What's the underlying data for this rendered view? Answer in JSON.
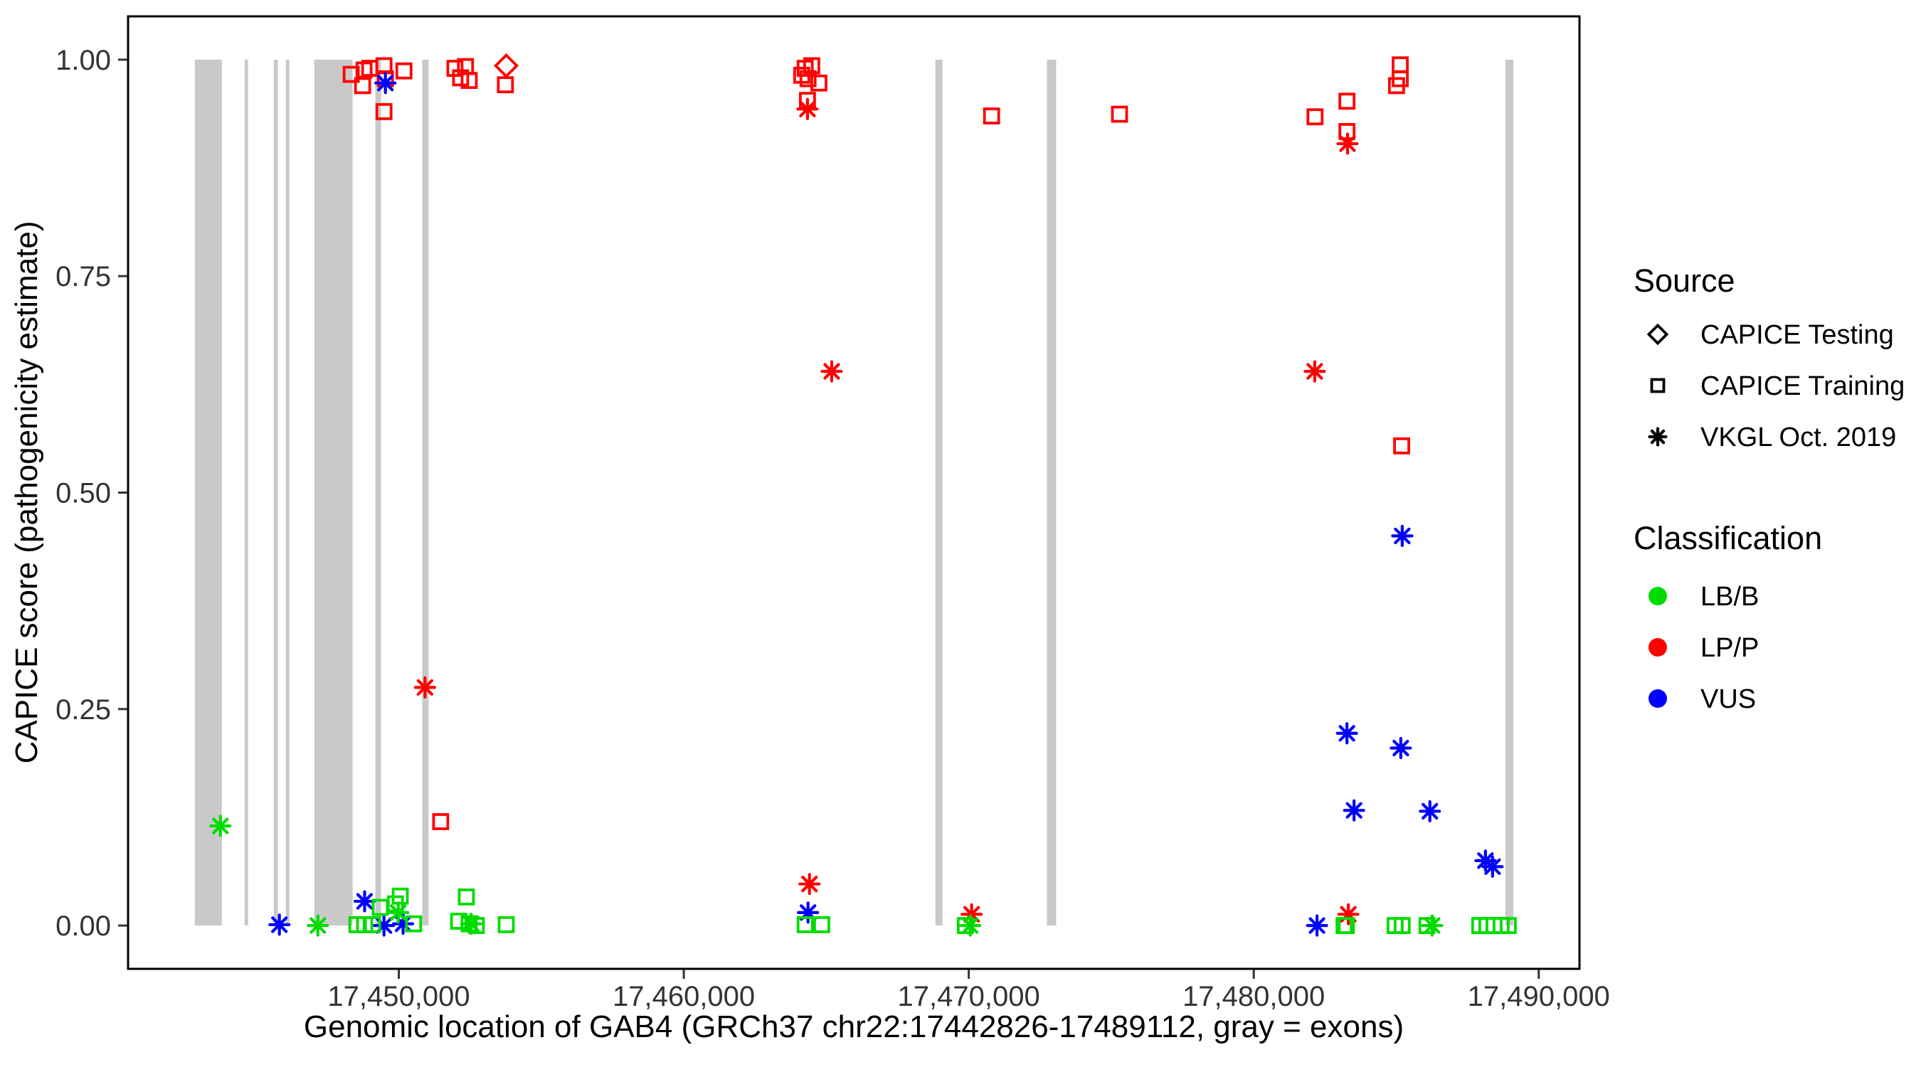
{
  "legend": {
    "source": {
      "title": "Source",
      "items": [
        {
          "label": "CAPICE Testing",
          "shape": "diamond"
        },
        {
          "label": "CAPICE Training",
          "shape": "square"
        },
        {
          "label": "VKGL Oct. 2019",
          "shape": "asterisk"
        }
      ]
    },
    "classification": {
      "title": "Classification",
      "items": [
        {
          "label": "LB/B",
          "color": "#00DC00"
        },
        {
          "label": "LP/P",
          "color": "#FF0000"
        },
        {
          "label": "VUS",
          "color": "#0000FF"
        }
      ]
    }
  },
  "chart_data": {
    "type": "scatter",
    "xlabel": "Genomic location of GAB4 (GRCh37 chr22:17442826-17489112, gray = exons)",
    "ylabel": "CAPICE score (pathogenicity estimate)",
    "x_range": [
      17440500,
      17491430
    ],
    "y_display_range": [
      -0.05,
      1.05
    ],
    "ylim": [
      0,
      1
    ],
    "grid": false,
    "exon_color": "#C9C9C9",
    "panel_border_color": "#000000",
    "colors": {
      "LB/B": "#00DC00",
      "LP/P": "#FF0000",
      "VUS": "#0000FF"
    },
    "shape_by_source": {
      "CAPICE Testing": "diamond",
      "CAPICE Training": "square",
      "VKGL Oct. 2019": "asterisk"
    },
    "x_ticks": [
      {
        "value": 17450000,
        "label": "17,450,000"
      },
      {
        "value": 17460000,
        "label": "17,460,000"
      },
      {
        "value": 17470000,
        "label": "17,470,000"
      },
      {
        "value": 17480000,
        "label": "17,480,000"
      },
      {
        "value": 17490000,
        "label": "17,490,000"
      }
    ],
    "y_ticks": [
      {
        "value": 0,
        "label": "0.00"
      },
      {
        "value": 0.25,
        "label": "0.25"
      },
      {
        "value": 0.5,
        "label": "0.50"
      },
      {
        "value": 0.75,
        "label": "0.75"
      },
      {
        "value": 1,
        "label": "1.00"
      }
    ],
    "exons": [
      [
        17442843,
        17443790
      ],
      [
        17444588,
        17444712
      ],
      [
        17445610,
        17445760
      ],
      [
        17446034,
        17446159
      ],
      [
        17447032,
        17448378
      ],
      [
        17449177,
        17449377
      ],
      [
        17450823,
        17451047
      ],
      [
        17468827,
        17469077
      ],
      [
        17472743,
        17473067
      ],
      [
        17488827,
        17489112
      ]
    ],
    "points": [
      {
        "loc": 17448330,
        "score": 0.983,
        "cls": "LP/P",
        "src": "CAPICE Training"
      },
      {
        "loc": 17448780,
        "score": 0.988,
        "cls": "LP/P",
        "src": "CAPICE Training"
      },
      {
        "loc": 17448980,
        "score": 0.99,
        "cls": "LP/P",
        "src": "CAPICE Training"
      },
      {
        "loc": 17449480,
        "score": 0.993,
        "cls": "LP/P",
        "src": "CAPICE Training"
      },
      {
        "loc": 17449530,
        "score": 0.978,
        "cls": "LP/P",
        "src": "CAPICE Training"
      },
      {
        "loc": 17448730,
        "score": 0.97,
        "cls": "LP/P",
        "src": "CAPICE Training"
      },
      {
        "loc": 17450180,
        "score": 0.987,
        "cls": "LP/P",
        "src": "CAPICE Training"
      },
      {
        "loc": 17449480,
        "score": 0.94,
        "cls": "LP/P",
        "src": "CAPICE Training"
      },
      {
        "loc": 17451970,
        "score": 0.99,
        "cls": "LP/P",
        "src": "CAPICE Training"
      },
      {
        "loc": 17452340,
        "score": 0.992,
        "cls": "LP/P",
        "src": "CAPICE Training"
      },
      {
        "loc": 17452170,
        "score": 0.979,
        "cls": "LP/P",
        "src": "CAPICE Training"
      },
      {
        "loc": 17452470,
        "score": 0.976,
        "cls": "LP/P",
        "src": "CAPICE Training"
      },
      {
        "loc": 17453740,
        "score": 0.971,
        "cls": "LP/P",
        "src": "CAPICE Training"
      },
      {
        "loc": 17451470,
        "score": 0.12,
        "cls": "LP/P",
        "src": "CAPICE Training"
      },
      {
        "loc": 17464260,
        "score": 0.99,
        "cls": "LP/P",
        "src": "CAPICE Training"
      },
      {
        "loc": 17464140,
        "score": 0.982,
        "cls": "LP/P",
        "src": "CAPICE Training"
      },
      {
        "loc": 17464490,
        "score": 0.993,
        "cls": "LP/P",
        "src": "CAPICE Training"
      },
      {
        "loc": 17464360,
        "score": 0.978,
        "cls": "LP/P",
        "src": "CAPICE Training"
      },
      {
        "loc": 17464740,
        "score": 0.973,
        "cls": "LP/P",
        "src": "CAPICE Training"
      },
      {
        "loc": 17464340,
        "score": 0.953,
        "cls": "LP/P",
        "src": "CAPICE Training"
      },
      {
        "loc": 17470800,
        "score": 0.935,
        "cls": "LP/P",
        "src": "CAPICE Training"
      },
      {
        "loc": 17475290,
        "score": 0.937,
        "cls": "LP/P",
        "src": "CAPICE Training"
      },
      {
        "loc": 17482150,
        "score": 0.934,
        "cls": "LP/P",
        "src": "CAPICE Training"
      },
      {
        "loc": 17483270,
        "score": 0.952,
        "cls": "LP/P",
        "src": "CAPICE Training"
      },
      {
        "loc": 17483270,
        "score": 0.917,
        "cls": "LP/P",
        "src": "CAPICE Training"
      },
      {
        "loc": 17485140,
        "score": 0.994,
        "cls": "LP/P",
        "src": "CAPICE Training"
      },
      {
        "loc": 17485140,
        "score": 0.978,
        "cls": "LP/P",
        "src": "CAPICE Training"
      },
      {
        "loc": 17485010,
        "score": 0.97,
        "cls": "LP/P",
        "src": "CAPICE Training"
      },
      {
        "loc": 17485190,
        "score": 0.554,
        "cls": "LP/P",
        "src": "CAPICE Training"
      },
      {
        "loc": 17453770,
        "score": 0.993,
        "cls": "LP/P",
        "src": "CAPICE Testing"
      },
      {
        "loc": 17450920,
        "score": 0.275,
        "cls": "LP/P",
        "src": "VKGL Oct. 2019"
      },
      {
        "loc": 17464340,
        "score": 0.943,
        "cls": "LP/P",
        "src": "VKGL Oct. 2019"
      },
      {
        "loc": 17465190,
        "score": 0.64,
        "cls": "LP/P",
        "src": "VKGL Oct. 2019"
      },
      {
        "loc": 17464410,
        "score": 0.048,
        "cls": "LP/P",
        "src": "VKGL Oct. 2019"
      },
      {
        "loc": 17470100,
        "score": 0.013,
        "cls": "LP/P",
        "src": "VKGL Oct. 2019"
      },
      {
        "loc": 17483290,
        "score": 0.903,
        "cls": "LP/P",
        "src": "VKGL Oct. 2019"
      },
      {
        "loc": 17482140,
        "score": 0.64,
        "cls": "LP/P",
        "src": "VKGL Oct. 2019"
      },
      {
        "loc": 17483320,
        "score": 0.013,
        "cls": "LP/P",
        "src": "VKGL Oct. 2019"
      },
      {
        "loc": 17449530,
        "score": 0.973,
        "cls": "VUS",
        "src": "VKGL Oct. 2019"
      },
      {
        "loc": 17445810,
        "score": 0.001,
        "cls": "VUS",
        "src": "VKGL Oct. 2019"
      },
      {
        "loc": 17448800,
        "score": 0.028,
        "cls": "VUS",
        "src": "VKGL Oct. 2019"
      },
      {
        "loc": 17449480,
        "score": 0.0,
        "cls": "VUS",
        "src": "VKGL Oct. 2019"
      },
      {
        "loc": 17450150,
        "score": 0.002,
        "cls": "VUS",
        "src": "VKGL Oct. 2019"
      },
      {
        "loc": 17464360,
        "score": 0.015,
        "cls": "VUS",
        "src": "VKGL Oct. 2019"
      },
      {
        "loc": 17482220,
        "score": 0.0,
        "cls": "VUS",
        "src": "VKGL Oct. 2019"
      },
      {
        "loc": 17483270,
        "score": 0.222,
        "cls": "VUS",
        "src": "VKGL Oct. 2019"
      },
      {
        "loc": 17485160,
        "score": 0.205,
        "cls": "VUS",
        "src": "VKGL Oct. 2019"
      },
      {
        "loc": 17485210,
        "score": 0.45,
        "cls": "VUS",
        "src": "VKGL Oct. 2019"
      },
      {
        "loc": 17483520,
        "score": 0.133,
        "cls": "VUS",
        "src": "VKGL Oct. 2019"
      },
      {
        "loc": 17486180,
        "score": 0.132,
        "cls": "VUS",
        "src": "VKGL Oct. 2019"
      },
      {
        "loc": 17488130,
        "score": 0.075,
        "cls": "VUS",
        "src": "VKGL Oct. 2019"
      },
      {
        "loc": 17488380,
        "score": 0.068,
        "cls": "VUS",
        "src": "VKGL Oct. 2019"
      },
      {
        "loc": 17443740,
        "score": 0.115,
        "cls": "LB/B",
        "src": "VKGL Oct. 2019"
      },
      {
        "loc": 17447160,
        "score": 0.0,
        "cls": "LB/B",
        "src": "VKGL Oct. 2019"
      },
      {
        "loc": 17449980,
        "score": 0.015,
        "cls": "LB/B",
        "src": "VKGL Oct. 2019"
      },
      {
        "loc": 17452540,
        "score": 0.002,
        "cls": "LB/B",
        "src": "VKGL Oct. 2019"
      },
      {
        "loc": 17470050,
        "score": 0.0,
        "cls": "LB/B",
        "src": "VKGL Oct. 2019"
      },
      {
        "loc": 17486260,
        "score": 0.0,
        "cls": "LB/B",
        "src": "VKGL Oct. 2019"
      },
      {
        "loc": 17449350,
        "score": 0.021,
        "cls": "LB/B",
        "src": "CAPICE Training"
      },
      {
        "loc": 17449880,
        "score": 0.025,
        "cls": "LB/B",
        "src": "CAPICE Training"
      },
      {
        "loc": 17450050,
        "score": 0.034,
        "cls": "LB/B",
        "src": "CAPICE Training"
      },
      {
        "loc": 17448530,
        "score": 0.001,
        "cls": "LB/B",
        "src": "CAPICE Training"
      },
      {
        "loc": 17448800,
        "score": 0.001,
        "cls": "LB/B",
        "src": "CAPICE Training"
      },
      {
        "loc": 17449080,
        "score": 0.001,
        "cls": "LB/B",
        "src": "CAPICE Training"
      },
      {
        "loc": 17450520,
        "score": 0.002,
        "cls": "LB/B",
        "src": "CAPICE Training"
      },
      {
        "loc": 17452370,
        "score": 0.033,
        "cls": "LB/B",
        "src": "CAPICE Training"
      },
      {
        "loc": 17452100,
        "score": 0.005,
        "cls": "LB/B",
        "src": "CAPICE Training"
      },
      {
        "loc": 17452470,
        "score": 0.002,
        "cls": "LB/B",
        "src": "CAPICE Training"
      },
      {
        "loc": 17452720,
        "score": 0.0,
        "cls": "LB/B",
        "src": "CAPICE Training"
      },
      {
        "loc": 17453770,
        "score": 0.001,
        "cls": "LB/B",
        "src": "CAPICE Training"
      },
      {
        "loc": 17464260,
        "score": 0.001,
        "cls": "LB/B",
        "src": "CAPICE Training"
      },
      {
        "loc": 17464840,
        "score": 0.001,
        "cls": "LB/B",
        "src": "CAPICE Training"
      },
      {
        "loc": 17469880,
        "score": 0.0,
        "cls": "LB/B",
        "src": "CAPICE Training"
      },
      {
        "loc": 17483170,
        "score": 0.0,
        "cls": "LB/B",
        "src": "CAPICE Training"
      },
      {
        "loc": 17483250,
        "score": 0.0,
        "cls": "LB/B",
        "src": "CAPICE Training"
      },
      {
        "loc": 17484960,
        "score": 0.0,
        "cls": "LB/B",
        "src": "CAPICE Training"
      },
      {
        "loc": 17485210,
        "score": 0.0,
        "cls": "LB/B",
        "src": "CAPICE Training"
      },
      {
        "loc": 17486080,
        "score": 0.0,
        "cls": "LB/B",
        "src": "CAPICE Training"
      },
      {
        "loc": 17487930,
        "score": 0.0,
        "cls": "LB/B",
        "src": "CAPICE Training"
      },
      {
        "loc": 17488180,
        "score": 0.0,
        "cls": "LB/B",
        "src": "CAPICE Training"
      },
      {
        "loc": 17488430,
        "score": 0.0,
        "cls": "LB/B",
        "src": "CAPICE Training"
      },
      {
        "loc": 17488680,
        "score": 0.0,
        "cls": "LB/B",
        "src": "CAPICE Training"
      },
      {
        "loc": 17488930,
        "score": 0.0,
        "cls": "LB/B",
        "src": "CAPICE Training"
      }
    ]
  }
}
